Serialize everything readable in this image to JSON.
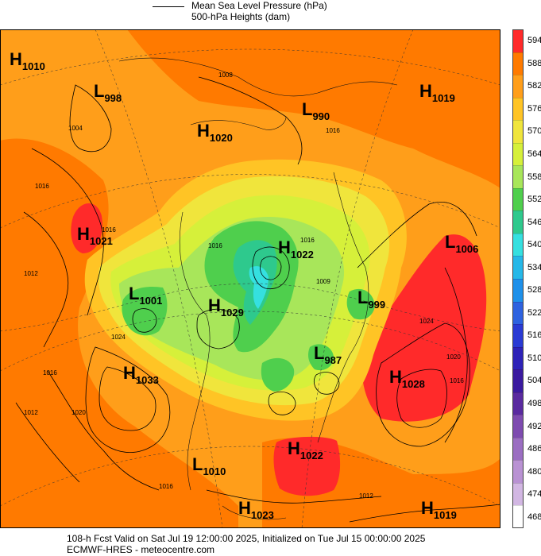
{
  "legend": {
    "mslp": "Mean Sea Level Pressure (hPa)",
    "heights": "500-hPa Heights (dam)"
  },
  "colorbar": {
    "levels": [
      "594",
      "588",
      "582",
      "576",
      "570",
      "564",
      "558",
      "552",
      "546",
      "540",
      "534",
      "528",
      "522",
      "516",
      "510",
      "504",
      "498",
      "492",
      "486",
      "480",
      "474",
      "468"
    ],
    "colors": [
      "#ff2a2a",
      "#ff7a00",
      "#ff9e1a",
      "#ffc425",
      "#f0e53c",
      "#d6f03a",
      "#a8e65a",
      "#4fcf4d",
      "#2ec98d",
      "#35e0e0",
      "#25b8e8",
      "#1e90ea",
      "#2e62e0",
      "#2a3ad4",
      "#2e22b8",
      "#3b1aa0",
      "#5a2aa0",
      "#7e4bb0",
      "#9b6ec2",
      "#b992d3",
      "#d2b7e3",
      "#ffffff"
    ]
  },
  "systems": [
    {
      "type": "H",
      "value": "1010"
    },
    {
      "type": "L",
      "value": "998"
    },
    {
      "type": "H",
      "value": "1020"
    },
    {
      "type": "L",
      "value": "990"
    },
    {
      "type": "H",
      "value": "1019"
    },
    {
      "type": "H",
      "value": "1021"
    },
    {
      "type": "H",
      "value": "1022"
    },
    {
      "type": "L",
      "value": "1006"
    },
    {
      "type": "L",
      "value": "1001"
    },
    {
      "type": "H",
      "value": "1029"
    },
    {
      "type": "L",
      "value": "999"
    },
    {
      "type": "L",
      "value": "987"
    },
    {
      "type": "H",
      "value": "1033"
    },
    {
      "type": "H",
      "value": "1028"
    },
    {
      "type": "H",
      "value": "1022"
    },
    {
      "type": "L",
      "value": "1010"
    },
    {
      "type": "H",
      "value": "1023"
    },
    {
      "type": "H",
      "value": "1019"
    }
  ],
  "contour_labels": [
    "1004",
    "1016",
    "1012",
    "1016",
    "1024",
    "1012",
    "1016",
    "1020",
    "1024",
    "1020",
    "1016",
    "1016",
    "1016",
    "1016",
    "1009",
    "1016",
    "1008",
    "1012"
  ],
  "footer": {
    "line1": "108-h Fcst Valid on Sat Jul 19 12:00:00 2025, Initialized on Tue Jul 15 00:00:00 2025",
    "line2": "ECMWF-HRES - meteocentre.com"
  }
}
